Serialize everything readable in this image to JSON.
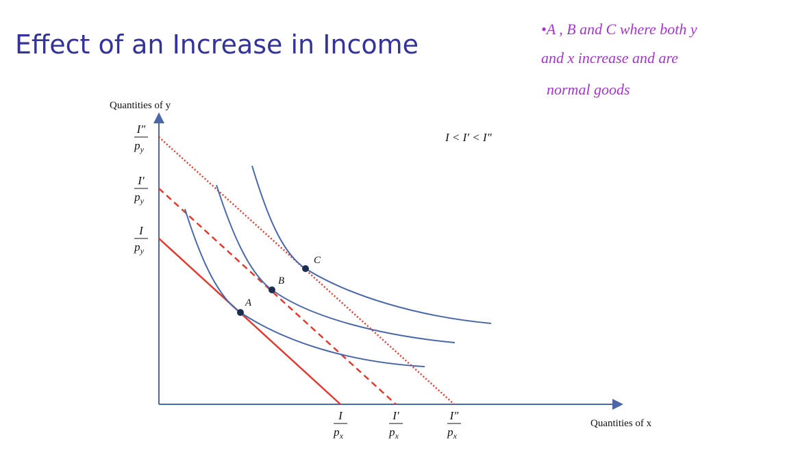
{
  "title": "Effect of an Increase in Income",
  "note": {
    "lines": [
      "•A , B and C where both y",
      "and x increase and are",
      "normal goods"
    ]
  },
  "diagram": {
    "y_axis_label": "Quantities of y",
    "x_axis_label": "Quantities of x",
    "relation": "I < I′ < I″",
    "y_intercepts": [
      {
        "numerator": "I″",
        "denominator": "p",
        "subscript": "y"
      },
      {
        "numerator": "I′",
        "denominator": "p",
        "subscript": "y"
      },
      {
        "numerator": "I",
        "denominator": "p",
        "subscript": "y"
      }
    ],
    "x_intercepts": [
      {
        "numerator": "I",
        "denominator": "p",
        "subscript": "x"
      },
      {
        "numerator": "I′",
        "denominator": "p",
        "subscript": "x"
      },
      {
        "numerator": "I″",
        "denominator": "p",
        "subscript": "x"
      }
    ],
    "points": [
      "A",
      "B",
      "C"
    ]
  }
}
